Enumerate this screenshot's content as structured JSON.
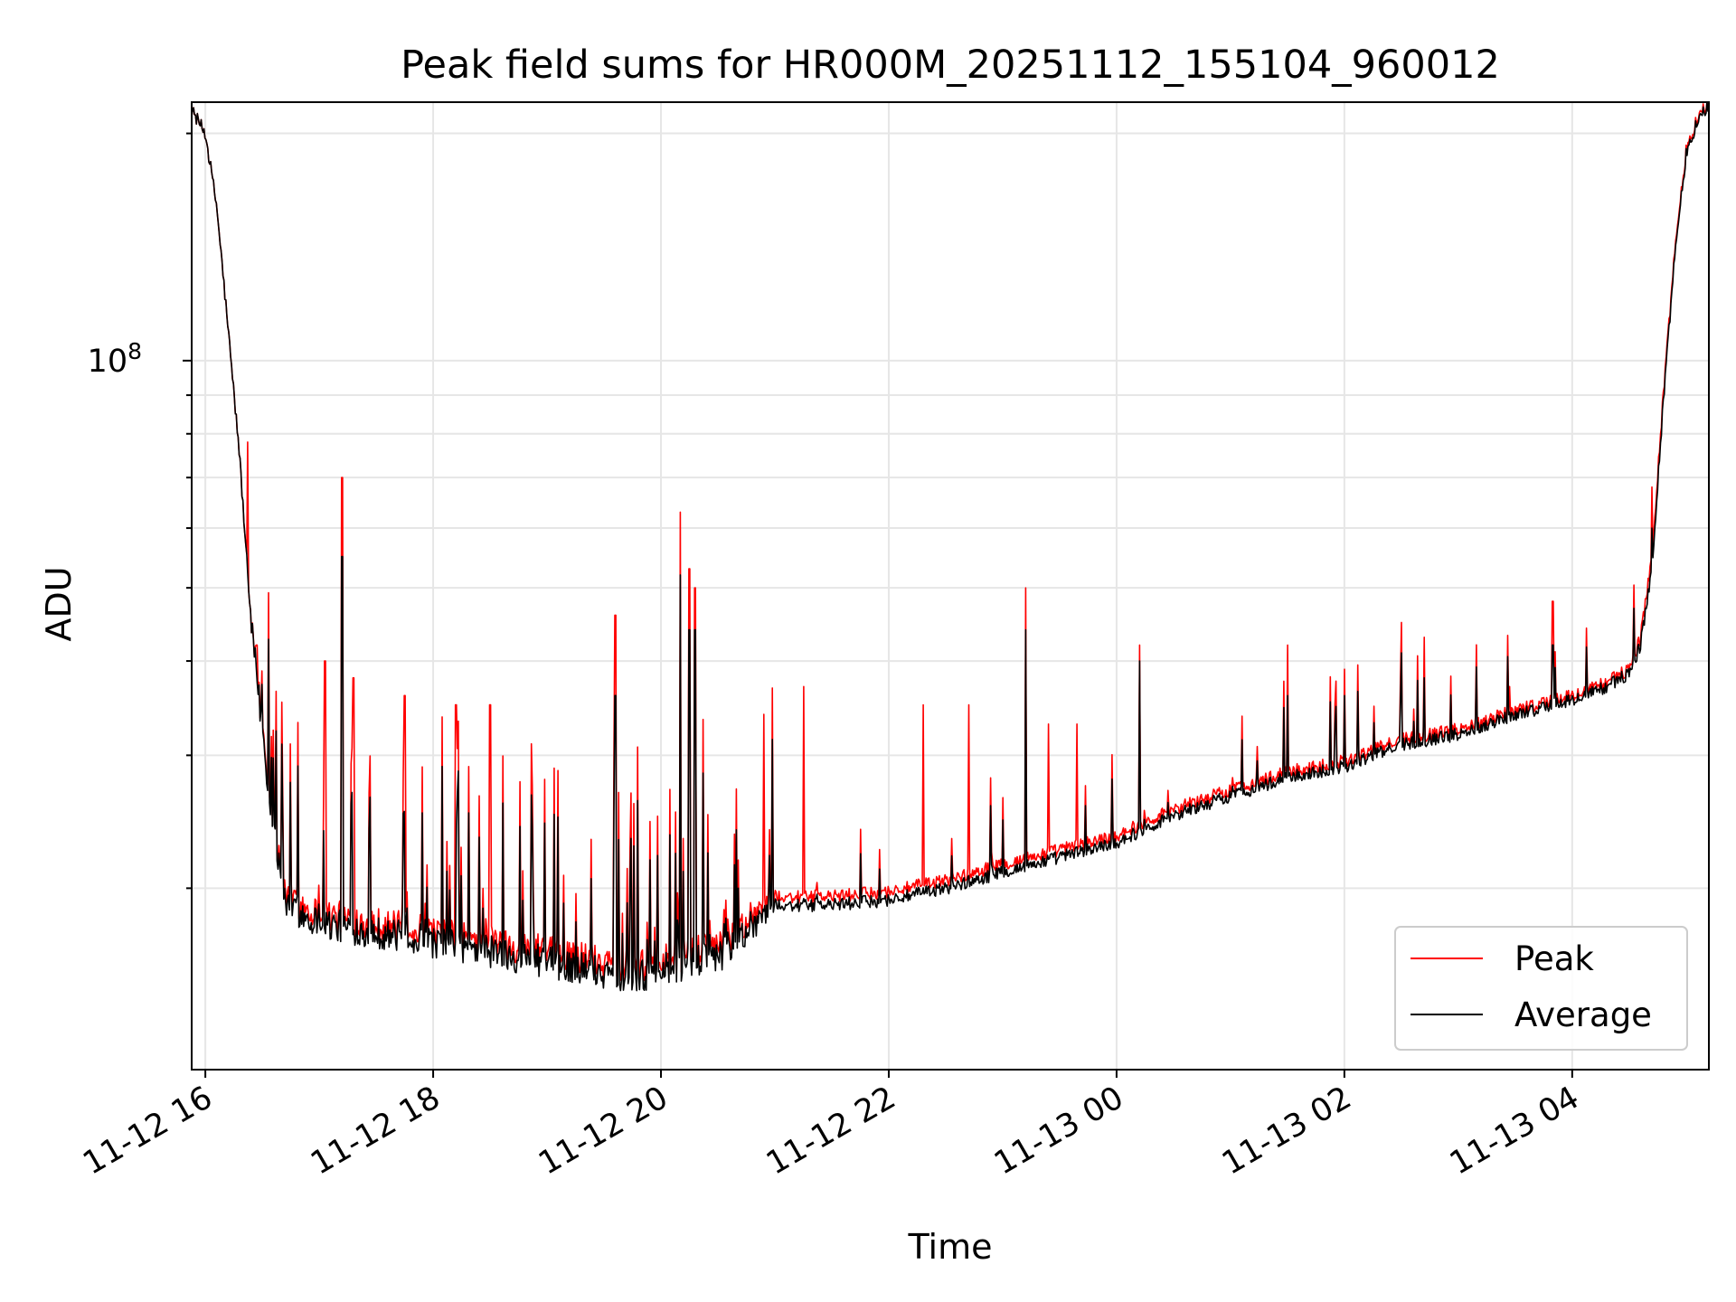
{
  "chart_data": {
    "type": "line",
    "title": "Peak field sums for HR000M_20251112_155104_960012",
    "xlabel": "Time",
    "ylabel": "ADU",
    "yscale": "log",
    "ylim": [
      11500000,
      220000000
    ],
    "xlim_hours": [
      15.88,
      29.2
    ],
    "x_ticks": [
      {
        "hour": 16,
        "label": "11-12 16"
      },
      {
        "hour": 18,
        "label": "11-12 18"
      },
      {
        "hour": 20,
        "label": "11-12 20"
      },
      {
        "hour": 22,
        "label": "11-12 22"
      },
      {
        "hour": 24,
        "label": "11-13 00"
      },
      {
        "hour": 26,
        "label": "11-13 02"
      },
      {
        "hour": 28,
        "label": "11-13 04"
      }
    ],
    "y_major_ticks": [
      {
        "value": 100000000,
        "base": "10",
        "exponent": "8"
      }
    ],
    "y_minor_ticks": [
      20000000,
      30000000,
      40000000,
      50000000,
      60000000,
      70000000,
      80000000,
      90000000,
      200000000
    ],
    "grid": true,
    "legend_position": "lower-right",
    "series": [
      {
        "name": "Peak",
        "color": "#ff0000",
        "baseline_hours": [
          15.88,
          16.0,
          16.1,
          16.2,
          16.3,
          16.4,
          16.55,
          16.7,
          17.0,
          17.5,
          18.0,
          18.5,
          19.0,
          19.5,
          19.8,
          20.0,
          20.3,
          20.6,
          20.8,
          21.0,
          21.5,
          22.0,
          22.5,
          23.0,
          23.5,
          24.0,
          24.5,
          25.0,
          25.5,
          26.0,
          26.5,
          27.0,
          27.5,
          28.0,
          28.3,
          28.5,
          28.6,
          28.7,
          28.8,
          28.9,
          29.0,
          29.1,
          29.2
        ],
        "baseline_values": [
          215000000,
          200000000,
          160000000,
          110000000,
          75000000,
          45000000,
          28000000,
          19500000,
          18500000,
          18000000,
          17500000,
          17000000,
          16500000,
          16000000,
          15800000,
          16000000,
          16500000,
          17000000,
          18500000,
          19500000,
          19500000,
          19800000,
          20500000,
          21500000,
          22500000,
          23500000,
          25500000,
          27000000,
          28500000,
          29500000,
          31500000,
          32500000,
          34500000,
          36000000,
          37500000,
          39000000,
          43000000,
          55000000,
          90000000,
          140000000,
          190000000,
          210000000,
          220000000
        ],
        "spikes": [
          {
            "hour": 16.3,
            "value": 58000000
          },
          {
            "hour": 16.37,
            "value": 78000000
          },
          {
            "hour": 16.45,
            "value": 42000000
          },
          {
            "hour": 17.2,
            "value": 70000000
          },
          {
            "hour": 17.05,
            "value": 40000000
          },
          {
            "hour": 17.3,
            "value": 38000000
          },
          {
            "hour": 17.75,
            "value": 36000000
          },
          {
            "hour": 18.2,
            "value": 35000000
          },
          {
            "hour": 18.5,
            "value": 35000000
          },
          {
            "hour": 19.6,
            "value": 46000000
          },
          {
            "hour": 20.17,
            "value": 63000000
          },
          {
            "hour": 20.25,
            "value": 53000000
          },
          {
            "hour": 20.3,
            "value": 50000000
          },
          {
            "hour": 20.9,
            "value": 34000000
          },
          {
            "hour": 21.25,
            "value": 37000000
          },
          {
            "hour": 22.3,
            "value": 35000000
          },
          {
            "hour": 22.7,
            "value": 35000000
          },
          {
            "hour": 23.2,
            "value": 50000000
          },
          {
            "hour": 23.4,
            "value": 33000000
          },
          {
            "hour": 23.65,
            "value": 33000000
          },
          {
            "hour": 24.2,
            "value": 42000000
          },
          {
            "hour": 25.5,
            "value": 42000000
          },
          {
            "hour": 26.0,
            "value": 39000000
          },
          {
            "hour": 26.5,
            "value": 45000000
          },
          {
            "hour": 26.7,
            "value": 43000000
          },
          {
            "hour": 27.45,
            "value": 37000000
          },
          {
            "hour": 27.83,
            "value": 48000000
          },
          {
            "hour": 28.7,
            "value": 68000000
          }
        ]
      },
      {
        "name": "Average",
        "color": "#000000",
        "baseline_hours": [
          15.88,
          16.0,
          16.1,
          16.2,
          16.3,
          16.4,
          16.55,
          16.7,
          17.0,
          17.5,
          18.0,
          18.5,
          19.0,
          19.5,
          19.8,
          20.0,
          20.3,
          20.6,
          20.8,
          21.0,
          21.5,
          22.0,
          22.5,
          23.0,
          23.5,
          24.0,
          24.5,
          25.0,
          25.5,
          26.0,
          26.5,
          27.0,
          27.5,
          28.0,
          28.3,
          28.5,
          28.6,
          28.7,
          28.8,
          28.9,
          29.0,
          29.1,
          29.2
        ],
        "baseline_values": [
          215000000,
          200000000,
          160000000,
          110000000,
          75000000,
          45000000,
          27500000,
          19000000,
          18000000,
          17500000,
          17000000,
          16500000,
          16000000,
          15500000,
          15300000,
          15600000,
          16000000,
          16500000,
          18000000,
          19000000,
          19000000,
          19300000,
          20000000,
          21000000,
          22000000,
          23000000,
          25000000,
          26500000,
          28000000,
          29000000,
          31000000,
          32000000,
          34000000,
          35500000,
          37000000,
          38500000,
          42000000,
          53000000,
          88000000,
          138000000,
          188000000,
          208000000,
          218000000
        ],
        "spikes": [
          {
            "hour": 17.2,
            "value": 55000000
          },
          {
            "hour": 20.17,
            "value": 52000000
          },
          {
            "hour": 20.25,
            "value": 44000000
          },
          {
            "hour": 20.3,
            "value": 44000000
          },
          {
            "hour": 19.6,
            "value": 36000000
          },
          {
            "hour": 23.2,
            "value": 44000000
          },
          {
            "hour": 24.2,
            "value": 40000000
          },
          {
            "hour": 25.5,
            "value": 36000000
          },
          {
            "hour": 26.0,
            "value": 36000000
          },
          {
            "hour": 26.5,
            "value": 41000000
          },
          {
            "hour": 26.7,
            "value": 38000000
          },
          {
            "hour": 27.83,
            "value": 42000000
          },
          {
            "hour": 28.7,
            "value": 60000000
          }
        ]
      }
    ]
  }
}
